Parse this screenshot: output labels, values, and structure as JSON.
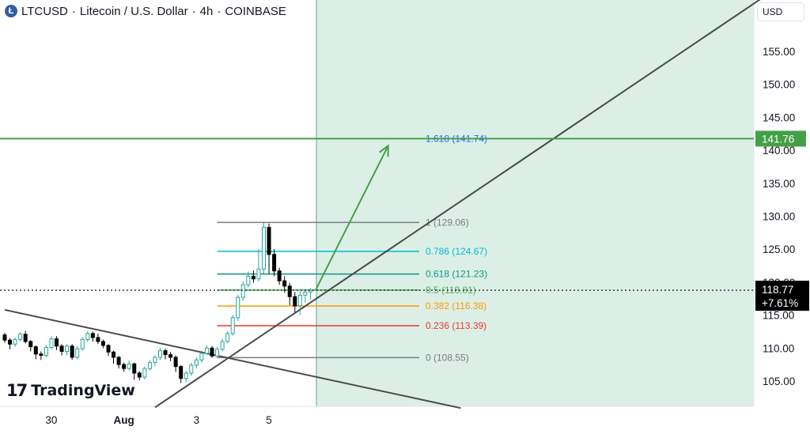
{
  "header": {
    "symbol": "LTCUSD",
    "description": "Litecoin / U.S. Dollar",
    "interval": "4h",
    "exchange": "COINBASE",
    "separator": "·",
    "icon": "litecoin-icon",
    "icon_glyph": "Ł"
  },
  "currency_button": "USD",
  "logo": {
    "mark": "17",
    "text": "TradingView"
  },
  "colors": {
    "up": "#26a69a",
    "down": "#000000",
    "zone_fill": "#dcefe6",
    "target_line": "#43a047",
    "arrow": "#43a047",
    "trendline": "#4a4a4a",
    "price_label_bg": "#000000",
    "target_label_bg": "#43a047"
  },
  "chart_data": {
    "type": "candlestick",
    "y_axis": {
      "range": [
        100.8,
        162.0
      ],
      "ticks": [
        "105.00",
        "110.00",
        "115.00",
        "120.00",
        "125.00",
        "130.00",
        "135.00",
        "140.00",
        "145.00",
        "150.00",
        "155.00"
      ],
      "tick_values": [
        105,
        110,
        115,
        120,
        125,
        130,
        135,
        140,
        145,
        150,
        155
      ]
    },
    "x_axis": {
      "ticks": [
        {
          "label": "30",
          "index": 9
        },
        {
          "label": "Aug",
          "index": 23
        },
        {
          "label": "3",
          "index": 37
        },
        {
          "label": "5",
          "index": 51
        }
      ]
    },
    "current_price": {
      "value": 118.77,
      "label": "118.77",
      "change": "+7.61%"
    },
    "target": {
      "value": 141.76,
      "label": "141.76"
    },
    "fibonacci": [
      {
        "level": "1",
        "value": 129.06,
        "text": "1 (129.06)",
        "color": "#787b86"
      },
      {
        "level": "0.786",
        "value": 124.67,
        "text": "0.786 (124.67)",
        "color": "#00bcd4"
      },
      {
        "level": "0.618",
        "value": 121.23,
        "text": "0.618 (121.23)",
        "color": "#089981"
      },
      {
        "level": "0.5",
        "value": 118.81,
        "text": "0.5 (118.81)",
        "color": "#4caf50"
      },
      {
        "level": "0.382",
        "value": 116.38,
        "text": "0.382 (116.38)",
        "color": "#ff9800"
      },
      {
        "level": "0.236",
        "value": 113.39,
        "text": "0.236 (113.39)",
        "color": "#e53935"
      },
      {
        "level": "0",
        "value": 108.55,
        "text": "0 (108.55)",
        "color": "#787b86"
      },
      {
        "level": "1.618",
        "value": 141.74,
        "text": "1.618 (141.74)",
        "color": "#2962ff"
      }
    ],
    "fib_range": {
      "start_index": 41,
      "end_index": 80
    },
    "zone": {
      "start_index": 60
    },
    "arrow": {
      "from": {
        "index": 60,
        "value": 118.8
      },
      "to": {
        "index": 74,
        "value": 140.7
      }
    },
    "trendlines": [
      {
        "name": "ascending-trendline",
        "p1": {
          "index": 29,
          "value": 101.0
        },
        "p2": {
          "index": 146,
          "value": 163.0
        }
      },
      {
        "name": "descending-trendline",
        "p1": {
          "index": 0,
          "value": 115.8
        },
        "p2": {
          "index": 88,
          "value": 100.9
        }
      }
    ],
    "candles": [
      [
        112.0,
        111.2,
        112.3,
        110.8
      ],
      [
        111.2,
        110.6,
        111.5,
        109.8
      ],
      [
        110.6,
        111.3,
        111.6,
        110.2
      ],
      [
        111.3,
        112.1,
        112.4,
        111.0
      ],
      [
        112.1,
        111.0,
        112.6,
        110.7
      ],
      [
        111.0,
        110.2,
        111.2,
        109.5
      ],
      [
        110.2,
        109.1,
        110.4,
        108.3
      ],
      [
        109.1,
        108.9,
        109.5,
        108.2
      ],
      [
        108.9,
        110.1,
        110.5,
        108.6
      ],
      [
        110.1,
        111.4,
        111.8,
        109.8
      ],
      [
        111.4,
        110.3,
        111.8,
        109.7
      ],
      [
        110.3,
        109.5,
        110.6,
        108.9
      ],
      [
        109.5,
        110.3,
        110.6,
        108.9
      ],
      [
        110.3,
        108.6,
        110.6,
        108.2
      ],
      [
        108.6,
        109.9,
        110.3,
        108.3
      ],
      [
        109.9,
        111.3,
        111.7,
        109.6
      ],
      [
        111.3,
        112.2,
        112.6,
        110.9
      ],
      [
        112.2,
        111.6,
        112.5,
        111.0
      ],
      [
        111.6,
        111.0,
        112.2,
        110.6
      ],
      [
        111.0,
        110.4,
        111.3,
        110.0
      ],
      [
        110.4,
        109.4,
        110.6,
        108.8
      ],
      [
        109.4,
        108.6,
        109.6,
        107.6
      ],
      [
        108.6,
        107.5,
        108.8,
        106.9
      ],
      [
        107.5,
        106.9,
        107.8,
        106.4
      ],
      [
        106.9,
        107.6,
        108.1,
        106.6
      ],
      [
        107.6,
        106.2,
        107.8,
        105.2
      ],
      [
        106.2,
        105.6,
        106.5,
        105.1
      ],
      [
        105.6,
        106.9,
        107.2,
        105.2
      ],
      [
        106.9,
        107.8,
        108.2,
        106.6
      ],
      [
        107.8,
        108.6,
        108.9,
        107.3
      ],
      [
        108.6,
        109.6,
        110.0,
        108.2
      ],
      [
        109.6,
        109.0,
        109.9,
        108.3
      ],
      [
        109.0,
        108.6,
        109.4,
        108.0
      ],
      [
        108.6,
        107.2,
        108.9,
        106.4
      ],
      [
        107.2,
        105.4,
        107.4,
        104.7
      ],
      [
        105.4,
        106.2,
        106.5,
        104.8
      ],
      [
        106.2,
        107.4,
        107.8,
        105.8
      ],
      [
        107.4,
        108.2,
        108.6,
        106.9
      ],
      [
        108.2,
        109.2,
        109.6,
        107.8
      ],
      [
        109.2,
        110.0,
        110.4,
        108.9
      ],
      [
        110.0,
        108.8,
        110.3,
        108.5
      ],
      [
        108.8,
        109.8,
        110.2,
        108.5
      ],
      [
        109.8,
        111.0,
        111.4,
        109.5
      ],
      [
        111.0,
        112.2,
        112.6,
        110.7
      ],
      [
        112.2,
        114.6,
        115.0,
        111.9
      ],
      [
        114.6,
        117.7,
        118.1,
        114.1
      ],
      [
        117.7,
        119.6,
        120.1,
        117.2
      ],
      [
        119.6,
        120.9,
        121.6,
        119.2
      ],
      [
        120.9,
        120.5,
        121.8,
        119.9
      ],
      [
        120.5,
        122.0,
        125.0,
        120.1
      ],
      [
        122.0,
        128.3,
        129.06,
        121.3
      ],
      [
        128.3,
        124.2,
        128.9,
        121.3
      ],
      [
        124.2,
        121.7,
        125.0,
        120.9
      ],
      [
        121.7,
        120.2,
        122.2,
        119.6
      ],
      [
        120.2,
        119.4,
        120.9,
        118.4
      ],
      [
        119.4,
        117.8,
        119.9,
        116.5
      ],
      [
        117.8,
        116.4,
        118.5,
        115.4
      ],
      [
        116.4,
        118.0,
        118.6,
        115.0
      ],
      [
        118.0,
        118.5,
        119.0,
        116.9
      ],
      [
        118.5,
        118.77,
        119.1,
        117.4
      ]
    ]
  }
}
